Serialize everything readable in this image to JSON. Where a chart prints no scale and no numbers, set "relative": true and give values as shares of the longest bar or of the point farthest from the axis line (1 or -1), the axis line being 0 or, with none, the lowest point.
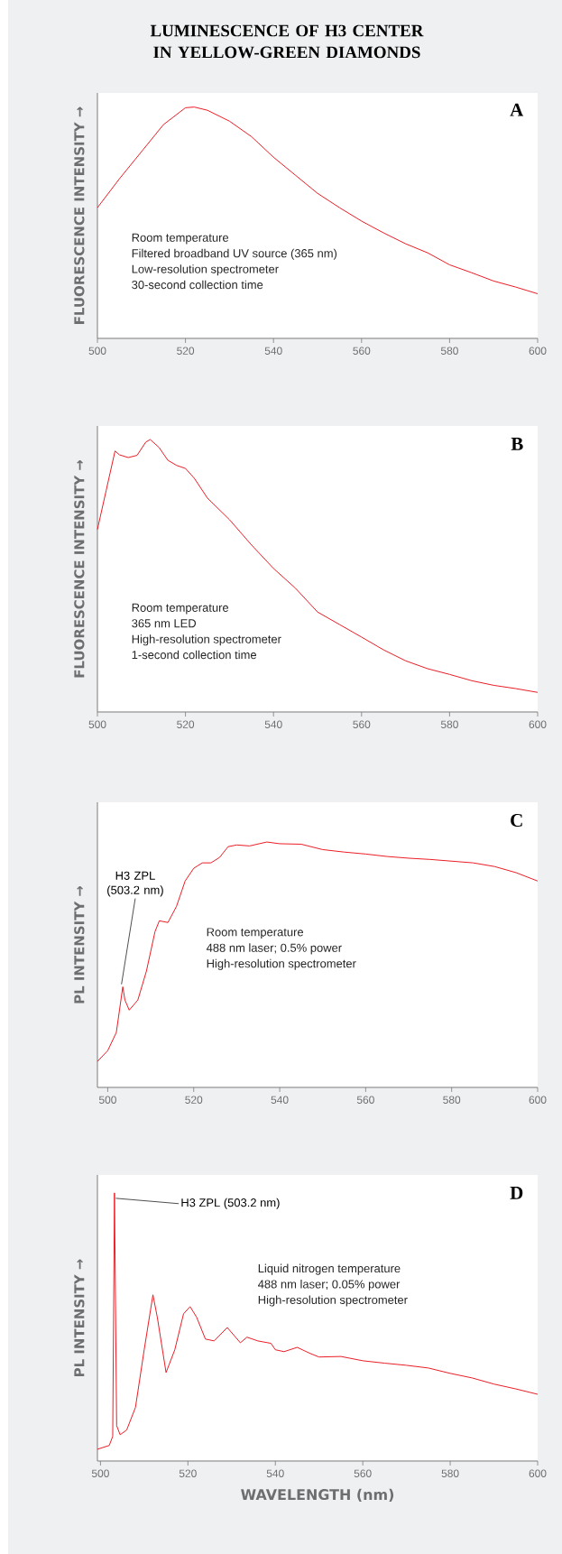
{
  "chart_data": [
    {
      "type": "line",
      "title": "LUMINESCENCE OF H3 CENTER IN YELLOW-GREEN DIAMONDS",
      "ylabel": "FLUORESCENCE INTENSITY →",
      "relative": true,
      "xlim": [
        500,
        600
      ],
      "xticks": [
        500,
        520,
        540,
        560,
        580,
        600
      ],
      "annotations": [
        "A",
        "Room temperature",
        "Filtered broadband UV source (365 nm)",
        "Low-resolution spectrometer",
        "30-second collection time"
      ],
      "x": [
        500,
        505,
        510,
        515,
        520,
        522,
        525,
        530,
        535,
        540,
        545,
        550,
        555,
        560,
        565,
        570,
        575,
        580,
        585,
        590,
        595,
        600
      ],
      "series": [
        {
          "color": "#ec1c24",
          "values": [
            0.565,
            0.69,
            0.807,
            0.924,
            0.997,
            1.0,
            0.986,
            0.939,
            0.872,
            0.783,
            0.705,
            0.627,
            0.565,
            0.507,
            0.456,
            0.409,
            0.37,
            0.318,
            0.284,
            0.248,
            0.222,
            0.193
          ]
        }
      ]
    },
    {
      "type": "line",
      "ylabel": "FLUORESCENCE INTENSITY →",
      "relative": true,
      "xlim": [
        500,
        600
      ],
      "xticks": [
        500,
        520,
        540,
        560,
        580,
        600
      ],
      "annotations": [
        "B",
        "Room temperature",
        "365 nm LED",
        "High-resolution spectrometer",
        "1-second collection time"
      ],
      "x": [
        500,
        502,
        504,
        505,
        507,
        509,
        511,
        512,
        514,
        516,
        518,
        520,
        522,
        525,
        530,
        535,
        540,
        545,
        550,
        555,
        560,
        565,
        570,
        575,
        580,
        585,
        590,
        595,
        600
      ],
      "series": [
        {
          "color": "#ec1c24",
          "values": [
            0.67,
            0.814,
            0.958,
            0.944,
            0.934,
            0.942,
            0.991,
            1.0,
            0.971,
            0.924,
            0.905,
            0.894,
            0.858,
            0.785,
            0.706,
            0.613,
            0.527,
            0.454,
            0.367,
            0.321,
            0.275,
            0.228,
            0.188,
            0.159,
            0.138,
            0.115,
            0.098,
            0.086,
            0.072
          ]
        }
      ]
    },
    {
      "type": "line",
      "ylabel": "PL INTENSITY →",
      "relative": true,
      "xlim": [
        497.6,
        600
      ],
      "xticks": [
        500,
        520,
        540,
        560,
        580,
        600
      ],
      "annotations": [
        "C",
        "Room temperature",
        "488 nm laser; 0.5% power",
        "High-resolution spectrometer",
        {
          "text": "H3 ZPL (503.2 nm)",
          "x": 503.2,
          "y": 0.41
        }
      ],
      "x": [
        497.6,
        500,
        502,
        503.5,
        504,
        505,
        507,
        509,
        511,
        512,
        514,
        516,
        518,
        520,
        522,
        524,
        526,
        528,
        530,
        533,
        537,
        540,
        545,
        550,
        555,
        560,
        565,
        570,
        575,
        580,
        585,
        590,
        595,
        600
      ],
      "series": [
        {
          "color": "#ec1c24",
          "values": [
            0.106,
            0.15,
            0.224,
            0.41,
            0.356,
            0.315,
            0.356,
            0.474,
            0.635,
            0.679,
            0.672,
            0.738,
            0.841,
            0.893,
            0.915,
            0.915,
            0.937,
            0.981,
            0.988,
            0.984,
            1.0,
            0.993,
            0.991,
            0.969,
            0.959,
            0.951,
            0.941,
            0.934,
            0.929,
            0.922,
            0.915,
            0.9,
            0.875,
            0.841
          ]
        }
      ]
    },
    {
      "type": "line",
      "ylabel": "PL INTENSITY →",
      "xlabel": "WAVELENGTH (nm)",
      "relative": true,
      "xlim": [
        499.3,
        600
      ],
      "xticks": [
        500,
        520,
        540,
        560,
        580,
        600
      ],
      "annotations": [
        "D",
        "Liquid nitrogen temperature",
        "488 nm laser; 0.05% power",
        "High-resolution spectrometer",
        {
          "text": "H3 ZPL (503.2 nm)",
          "x": 503.2,
          "y": 1.0
        }
      ],
      "x": [
        499.3,
        502,
        502.8,
        503.2,
        503.7,
        504.5,
        506,
        508,
        510,
        512,
        513,
        515,
        517,
        519,
        520.5,
        522,
        524,
        526,
        529,
        532,
        533.5,
        536,
        539,
        540,
        542,
        545,
        548,
        550,
        555,
        560,
        565,
        570,
        575,
        580,
        585,
        590,
        595,
        600
      ],
      "series": [
        {
          "color": "#ec1c24",
          "values": [
            0.044,
            0.058,
            0.092,
            1.0,
            0.132,
            0.098,
            0.116,
            0.2,
            0.415,
            0.62,
            0.536,
            0.33,
            0.415,
            0.549,
            0.576,
            0.536,
            0.455,
            0.448,
            0.498,
            0.441,
            0.462,
            0.448,
            0.439,
            0.415,
            0.408,
            0.424,
            0.401,
            0.388,
            0.39,
            0.374,
            0.365,
            0.357,
            0.347,
            0.327,
            0.31,
            0.287,
            0.269,
            0.249
          ]
        }
      ]
    }
  ]
}
